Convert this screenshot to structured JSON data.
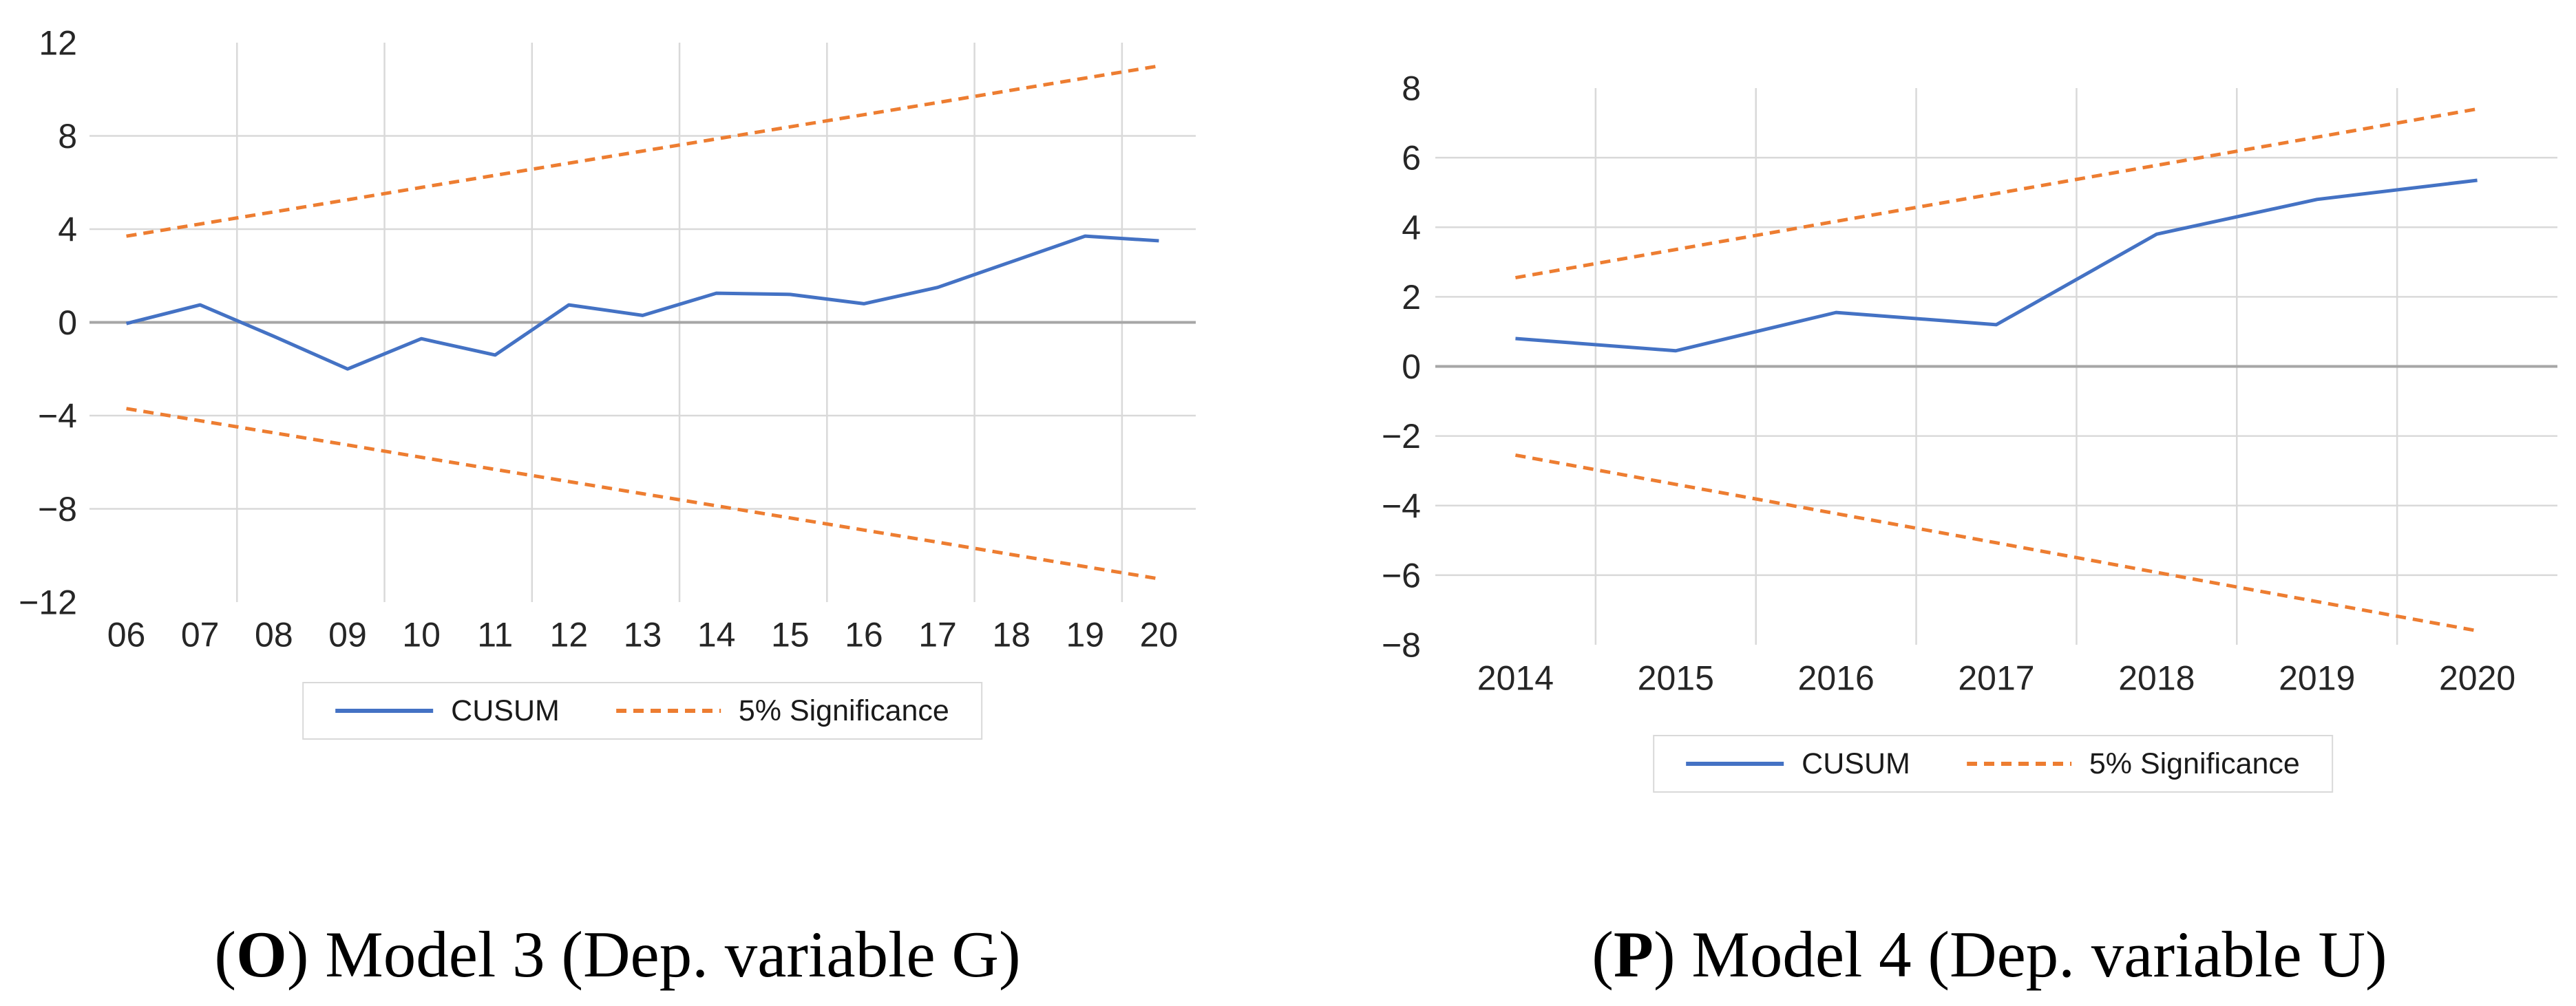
{
  "colors": {
    "cusum_blue": "#4472C4",
    "significance_orange": "#ED7D31",
    "gridline": "#D9D9D9",
    "zero_line": "#A6A6A6",
    "tick_text": "#262626",
    "legend_border": "#D9D9D9"
  },
  "legend": {
    "items": [
      {
        "label": "CUSUM",
        "style": "solid",
        "color": "#4472C4"
      },
      {
        "label": "5% Significance",
        "style": "dashed",
        "color": "#ED7D31"
      }
    ],
    "position": "bottom-center"
  },
  "chart_data": [
    {
      "type": "line",
      "caption_parts": {
        "open": "(",
        "bold": "O",
        "rest": ") Model 3 (Dep. variable G)"
      },
      "categories": [
        "06",
        "07",
        "08",
        "09",
        "10",
        "11",
        "12",
        "13",
        "14",
        "15",
        "16",
        "17",
        "18",
        "19",
        "20"
      ],
      "series": [
        {
          "name": "CUSUM",
          "style": "solid",
          "color": "#4472C4",
          "values": [
            -0.05,
            0.75,
            -0.6,
            -2.0,
            -0.7,
            -1.4,
            0.75,
            0.3,
            1.25,
            1.2,
            0.8,
            1.5,
            2.6,
            3.7,
            3.5
          ]
        },
        {
          "name": "5% Significance (upper)",
          "style": "dashed",
          "color": "#ED7D31",
          "values": [
            3.7,
            4.22,
            4.74,
            5.26,
            5.79,
            6.31,
            6.83,
            7.35,
            7.87,
            8.39,
            8.91,
            9.43,
            9.96,
            10.48,
            11.0
          ]
        },
        {
          "name": "5% Significance (lower)",
          "style": "dashed",
          "color": "#ED7D31",
          "values": [
            -3.7,
            -4.22,
            -4.74,
            -5.26,
            -5.79,
            -6.31,
            -6.83,
            -7.35,
            -7.87,
            -8.39,
            -8.91,
            -9.43,
            -9.96,
            -10.48,
            -11.0
          ]
        }
      ],
      "ylim": [
        -12,
        12
      ],
      "y_ticks": [
        12,
        8,
        4,
        0,
        -4,
        -8,
        -12
      ],
      "y_gridlines": [
        8,
        4,
        -4,
        -8
      ],
      "zero_line": true,
      "grid": true,
      "xlabel": "",
      "ylabel": ""
    },
    {
      "type": "line",
      "caption_parts": {
        "open": "(",
        "bold": "P",
        "rest": ") Model 4 (Dep. variable U)"
      },
      "categories": [
        "2014",
        "2015",
        "2016",
        "2017",
        "2018",
        "2019",
        "2020"
      ],
      "series": [
        {
          "name": "CUSUM",
          "style": "solid",
          "color": "#4472C4",
          "values": [
            0.8,
            0.45,
            1.55,
            1.2,
            3.8,
            4.8,
            5.35
          ]
        },
        {
          "name": "5% Significance (upper)",
          "style": "dashed",
          "color": "#ED7D31",
          "values": [
            2.55,
            3.36,
            4.17,
            4.97,
            5.78,
            6.59,
            7.4
          ]
        },
        {
          "name": "5% Significance (lower)",
          "style": "dashed",
          "color": "#ED7D31",
          "values": [
            -2.55,
            -3.39,
            -4.23,
            -5.07,
            -5.92,
            -6.76,
            -7.6
          ]
        }
      ],
      "ylim": [
        -8,
        8
      ],
      "y_ticks": [
        8,
        6,
        4,
        2,
        0,
        -2,
        -4,
        -6,
        -8
      ],
      "y_gridlines": [
        6,
        4,
        2,
        -2,
        -4,
        -6
      ],
      "zero_line": true,
      "grid": true,
      "xlabel": "",
      "ylabel": ""
    }
  ]
}
